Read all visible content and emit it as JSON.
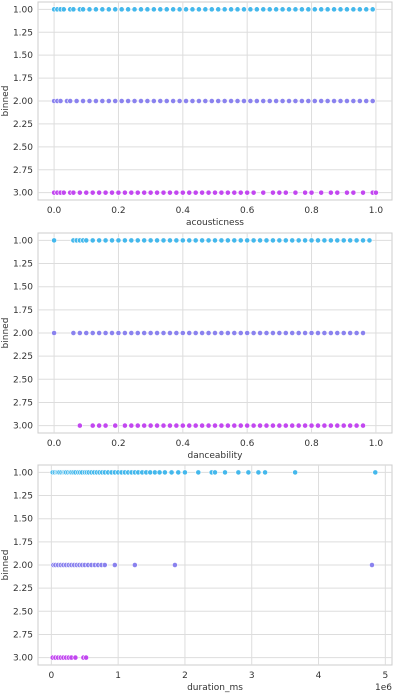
{
  "colors": {
    "bin1": "#44b8ec",
    "bin2": "#8a82ee",
    "bin3": "#c247f0",
    "grid": "#dddddd",
    "frame": "#cccccc"
  },
  "chart_data": [
    {
      "type": "scatter",
      "xlabel": "acousticness",
      "ylabel": "binned",
      "xlim": [
        -0.05,
        1.05
      ],
      "ylim": [
        3.08,
        0.92
      ],
      "xticks": [
        0.0,
        0.2,
        0.4,
        0.6,
        0.8,
        1.0
      ],
      "xtick_labels": [
        "0.0",
        "0.2",
        "0.4",
        "0.6",
        "0.8",
        "1.0"
      ],
      "yticks": [
        1.0,
        1.25,
        1.5,
        1.75,
        2.0,
        2.25,
        2.5,
        2.75,
        3.0
      ],
      "ytick_labels": [
        "1.00",
        "1.25",
        "1.50",
        "1.75",
        "2.00",
        "2.25",
        "2.50",
        "2.75",
        "3.00"
      ],
      "grid": true,
      "series": [
        {
          "y": 1,
          "x": [
            0.0,
            0.01,
            0.02,
            0.03,
            0.05,
            0.06,
            0.08,
            0.09,
            0.11,
            0.13,
            0.15,
            0.17,
            0.19,
            0.21,
            0.23,
            0.25,
            0.27,
            0.29,
            0.31,
            0.33,
            0.35,
            0.37,
            0.39,
            0.41,
            0.43,
            0.45,
            0.47,
            0.49,
            0.51,
            0.53,
            0.55,
            0.57,
            0.59,
            0.61,
            0.63,
            0.65,
            0.67,
            0.69,
            0.71,
            0.73,
            0.75,
            0.77,
            0.79,
            0.81,
            0.83,
            0.85,
            0.87,
            0.89,
            0.91,
            0.93,
            0.95,
            0.97,
            0.99
          ]
        },
        {
          "y": 2,
          "x": [
            0.0,
            0.01,
            0.02,
            0.04,
            0.05,
            0.07,
            0.09,
            0.11,
            0.13,
            0.15,
            0.17,
            0.19,
            0.21,
            0.23,
            0.25,
            0.27,
            0.29,
            0.31,
            0.33,
            0.35,
            0.37,
            0.39,
            0.41,
            0.43,
            0.45,
            0.47,
            0.49,
            0.51,
            0.53,
            0.55,
            0.57,
            0.59,
            0.61,
            0.63,
            0.65,
            0.67,
            0.69,
            0.71,
            0.73,
            0.75,
            0.77,
            0.79,
            0.81,
            0.83,
            0.85,
            0.87,
            0.89,
            0.91,
            0.93,
            0.95,
            0.97,
            0.99
          ]
        },
        {
          "y": 3,
          "x": [
            0.0,
            0.01,
            0.02,
            0.03,
            0.05,
            0.06,
            0.08,
            0.1,
            0.12,
            0.14,
            0.16,
            0.18,
            0.2,
            0.22,
            0.24,
            0.26,
            0.28,
            0.3,
            0.32,
            0.34,
            0.36,
            0.38,
            0.4,
            0.42,
            0.44,
            0.46,
            0.48,
            0.5,
            0.52,
            0.54,
            0.56,
            0.58,
            0.6,
            0.62,
            0.65,
            0.68,
            0.7,
            0.72,
            0.75,
            0.78,
            0.8,
            0.83,
            0.86,
            0.88,
            0.91,
            0.93,
            0.96,
            0.99,
            1.0
          ]
        }
      ]
    },
    {
      "type": "scatter",
      "xlabel": "danceability",
      "ylabel": "binned",
      "xlim": [
        -0.05,
        1.05
      ],
      "ylim": [
        3.08,
        0.92
      ],
      "xticks": [
        0.0,
        0.2,
        0.4,
        0.6,
        0.8,
        1.0
      ],
      "xtick_labels": [
        "0.0",
        "0.2",
        "0.4",
        "0.6",
        "0.8",
        "1.0"
      ],
      "yticks": [
        1.0,
        1.25,
        1.5,
        1.75,
        2.0,
        2.25,
        2.5,
        2.75,
        3.0
      ],
      "ytick_labels": [
        "1.00",
        "1.25",
        "1.50",
        "1.75",
        "2.00",
        "2.25",
        "2.50",
        "2.75",
        "3.00"
      ],
      "grid": true,
      "series": [
        {
          "y": 1,
          "x": [
            0.0,
            0.06,
            0.07,
            0.08,
            0.09,
            0.1,
            0.12,
            0.14,
            0.16,
            0.18,
            0.2,
            0.22,
            0.24,
            0.26,
            0.28,
            0.3,
            0.32,
            0.34,
            0.36,
            0.38,
            0.4,
            0.42,
            0.44,
            0.46,
            0.48,
            0.5,
            0.52,
            0.54,
            0.56,
            0.58,
            0.6,
            0.62,
            0.64,
            0.66,
            0.68,
            0.7,
            0.72,
            0.74,
            0.76,
            0.78,
            0.8,
            0.82,
            0.84,
            0.86,
            0.88,
            0.9,
            0.92,
            0.94,
            0.96,
            0.98
          ]
        },
        {
          "y": 2,
          "x": [
            0.0,
            0.06,
            0.08,
            0.1,
            0.12,
            0.14,
            0.16,
            0.18,
            0.2,
            0.22,
            0.24,
            0.26,
            0.28,
            0.3,
            0.32,
            0.34,
            0.36,
            0.38,
            0.4,
            0.42,
            0.44,
            0.46,
            0.48,
            0.5,
            0.52,
            0.54,
            0.56,
            0.58,
            0.6,
            0.62,
            0.64,
            0.66,
            0.68,
            0.7,
            0.72,
            0.74,
            0.76,
            0.78,
            0.8,
            0.82,
            0.84,
            0.86,
            0.88,
            0.9,
            0.92,
            0.94,
            0.96
          ]
        },
        {
          "y": 3,
          "x": [
            0.08,
            0.12,
            0.14,
            0.16,
            0.19,
            0.22,
            0.24,
            0.26,
            0.28,
            0.3,
            0.32,
            0.34,
            0.36,
            0.38,
            0.4,
            0.42,
            0.44,
            0.46,
            0.48,
            0.5,
            0.52,
            0.54,
            0.56,
            0.58,
            0.6,
            0.62,
            0.64,
            0.66,
            0.68,
            0.7,
            0.72,
            0.74,
            0.76,
            0.78,
            0.8,
            0.82,
            0.84,
            0.86,
            0.88,
            0.9,
            0.92,
            0.94,
            0.96
          ]
        }
      ]
    },
    {
      "type": "scatter",
      "xlabel": "duration_ms",
      "ylabel": "binned",
      "offset_label": "1e6",
      "xlim": [
        -0.2,
        5.1
      ],
      "ylim": [
        3.08,
        0.92
      ],
      "xticks": [
        0,
        1,
        2,
        3,
        4,
        5
      ],
      "xtick_labels": [
        "0",
        "1",
        "2",
        "3",
        "4",
        "5"
      ],
      "yticks": [
        1.0,
        1.25,
        1.5,
        1.75,
        2.0,
        2.25,
        2.5,
        2.75,
        3.0
      ],
      "ytick_labels": [
        "1.00",
        "1.25",
        "1.50",
        "1.75",
        "2.00",
        "2.25",
        "2.50",
        "2.75",
        "3.00"
      ],
      "grid": true,
      "series": [
        {
          "y": 1,
          "x": [
            0.02,
            0.05,
            0.08,
            0.1,
            0.12,
            0.15,
            0.18,
            0.2,
            0.22,
            0.25,
            0.28,
            0.3,
            0.33,
            0.36,
            0.4,
            0.43,
            0.46,
            0.5,
            0.53,
            0.56,
            0.6,
            0.64,
            0.68,
            0.72,
            0.76,
            0.8,
            0.85,
            0.9,
            0.95,
            1.0,
            1.05,
            1.1,
            1.15,
            1.2,
            1.25,
            1.3,
            1.36,
            1.42,
            1.48,
            1.55,
            1.62,
            1.7,
            1.8,
            1.9,
            2.0,
            2.2,
            2.4,
            2.45,
            2.6,
            2.8,
            2.95,
            3.1,
            3.2,
            3.65,
            4.85
          ]
        },
        {
          "y": 2,
          "x": [
            0.03,
            0.06,
            0.1,
            0.14,
            0.18,
            0.22,
            0.26,
            0.3,
            0.34,
            0.38,
            0.42,
            0.46,
            0.5,
            0.55,
            0.6,
            0.65,
            0.7,
            0.75,
            0.8,
            0.95,
            1.25,
            1.85,
            4.8
          ]
        },
        {
          "y": 3,
          "x": [
            0.02,
            0.06,
            0.1,
            0.14,
            0.18,
            0.22,
            0.26,
            0.3,
            0.36,
            0.48,
            0.52
          ]
        }
      ]
    }
  ]
}
